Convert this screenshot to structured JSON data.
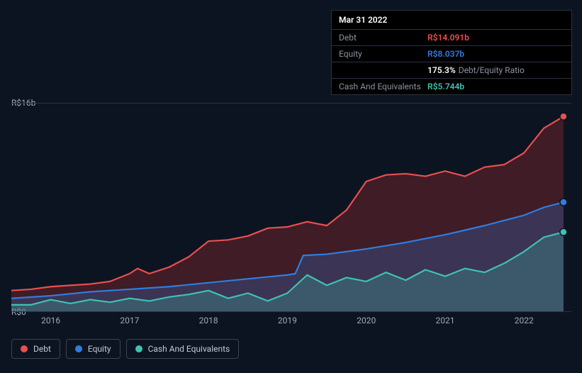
{
  "tooltip": {
    "date": "Mar 31 2022",
    "rows": [
      {
        "label": "Debt",
        "value": "R$14.091b",
        "color": "#e94f4f"
      },
      {
        "label": "Equity",
        "value": "R$8.037b",
        "color": "#2f7de0"
      },
      {
        "label": "",
        "value": "175.3%",
        "suffix": "Debt/Equity Ratio",
        "color": "#ffffff"
      },
      {
        "label": "Cash And Equivalents",
        "value": "R$5.744b",
        "color": "#3fc2b0"
      }
    ]
  },
  "chart": {
    "type": "area",
    "background_color": "#0d1421",
    "grid_color": "#2a3140",
    "ylim": [
      0,
      16
    ],
    "y_ticks": [
      {
        "v": 16,
        "label": "R$16b"
      },
      {
        "v": 0,
        "label": "R$0"
      }
    ],
    "x_years": [
      2016,
      2017,
      2018,
      2019,
      2020,
      2021,
      2022
    ],
    "x_domain": [
      2015.5,
      2022.6
    ],
    "series": [
      {
        "name": "Debt",
        "color": "#e94f4f",
        "fill": "rgba(180,50,50,0.30)",
        "points": [
          [
            2015.5,
            1.6
          ],
          [
            2015.75,
            1.7
          ],
          [
            2016.0,
            1.9
          ],
          [
            2016.25,
            2.0
          ],
          [
            2016.5,
            2.1
          ],
          [
            2016.75,
            2.3
          ],
          [
            2017.0,
            2.9
          ],
          [
            2017.1,
            3.3
          ],
          [
            2017.25,
            2.9
          ],
          [
            2017.5,
            3.4
          ],
          [
            2017.75,
            4.2
          ],
          [
            2018.0,
            5.4
          ],
          [
            2018.25,
            5.5
          ],
          [
            2018.5,
            5.8
          ],
          [
            2018.75,
            6.4
          ],
          [
            2019.0,
            6.5
          ],
          [
            2019.25,
            6.9
          ],
          [
            2019.5,
            6.6
          ],
          [
            2019.75,
            7.8
          ],
          [
            2020.0,
            10.0
          ],
          [
            2020.25,
            10.5
          ],
          [
            2020.5,
            10.6
          ],
          [
            2020.75,
            10.4
          ],
          [
            2021.0,
            10.8
          ],
          [
            2021.25,
            10.4
          ],
          [
            2021.5,
            11.1
          ],
          [
            2021.75,
            11.3
          ],
          [
            2022.0,
            12.2
          ],
          [
            2022.25,
            14.1
          ],
          [
            2022.5,
            15.0
          ]
        ]
      },
      {
        "name": "Equity",
        "color": "#2f7de0",
        "fill": "rgba(47,125,224,0.25)",
        "points": [
          [
            2015.5,
            1.0
          ],
          [
            2016.0,
            1.2
          ],
          [
            2016.5,
            1.5
          ],
          [
            2017.0,
            1.7
          ],
          [
            2017.5,
            1.9
          ],
          [
            2018.0,
            2.2
          ],
          [
            2018.5,
            2.5
          ],
          [
            2019.0,
            2.8
          ],
          [
            2019.1,
            2.9
          ],
          [
            2019.2,
            4.3
          ],
          [
            2019.5,
            4.4
          ],
          [
            2020.0,
            4.8
          ],
          [
            2020.5,
            5.3
          ],
          [
            2021.0,
            5.9
          ],
          [
            2021.5,
            6.6
          ],
          [
            2022.0,
            7.4
          ],
          [
            2022.25,
            8.0
          ],
          [
            2022.5,
            8.4
          ]
        ]
      },
      {
        "name": "Cash And Equivalents",
        "color": "#3fc2b0",
        "fill": "rgba(63,194,176,0.25)",
        "points": [
          [
            2015.5,
            0.5
          ],
          [
            2015.75,
            0.5
          ],
          [
            2016.0,
            0.9
          ],
          [
            2016.25,
            0.6
          ],
          [
            2016.5,
            0.9
          ],
          [
            2016.75,
            0.7
          ],
          [
            2017.0,
            1.0
          ],
          [
            2017.25,
            0.8
          ],
          [
            2017.5,
            1.1
          ],
          [
            2017.75,
            1.3
          ],
          [
            2018.0,
            1.6
          ],
          [
            2018.25,
            1.0
          ],
          [
            2018.5,
            1.4
          ],
          [
            2018.75,
            0.8
          ],
          [
            2019.0,
            1.4
          ],
          [
            2019.25,
            2.8
          ],
          [
            2019.5,
            2.0
          ],
          [
            2019.75,
            2.6
          ],
          [
            2020.0,
            2.3
          ],
          [
            2020.25,
            3.0
          ],
          [
            2020.5,
            2.4
          ],
          [
            2020.75,
            3.2
          ],
          [
            2021.0,
            2.7
          ],
          [
            2021.25,
            3.3
          ],
          [
            2021.5,
            3.0
          ],
          [
            2021.75,
            3.7
          ],
          [
            2022.0,
            4.6
          ],
          [
            2022.25,
            5.7
          ],
          [
            2022.5,
            6.1
          ]
        ]
      }
    ],
    "marker_x": 2022.5,
    "markers": [
      {
        "series": 0,
        "color": "#e94f4f"
      },
      {
        "series": 1,
        "color": "#2f7de0"
      },
      {
        "series": 2,
        "color": "#3fc2b0"
      }
    ],
    "legend": [
      {
        "label": "Debt",
        "color": "#e94f4f"
      },
      {
        "label": "Equity",
        "color": "#2f7de0"
      },
      {
        "label": "Cash And Equivalents",
        "color": "#3fc2b0"
      }
    ]
  }
}
